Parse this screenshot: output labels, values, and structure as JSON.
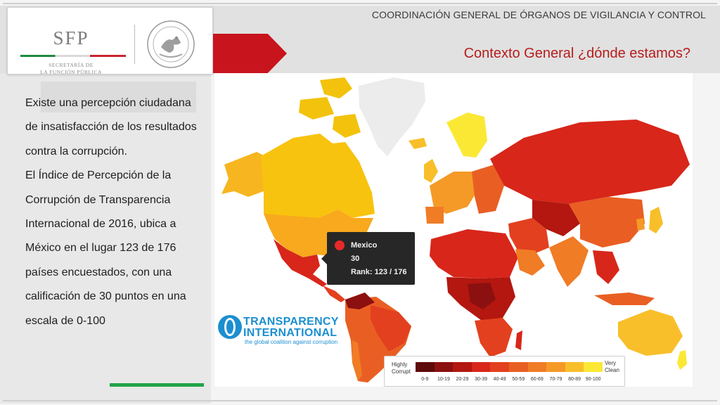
{
  "header": {
    "org_title": "COORDINACIÓN GENERAL DE ÓRGANOS DE VIGILANCIA Y CONTROL",
    "slide_title": "Contexto General ¿dónde estamos?"
  },
  "logo": {
    "acronym": "SFP",
    "subtitle_line1": "SECRETARÍA DE",
    "subtitle_line2": "LA FUNCIÓN PÚBLICA"
  },
  "body": {
    "paragraph1": "Existe una percepción ciudadana de insatisfacción de los resultados contra la corrupción.",
    "paragraph2": "El Índice de Percepción de la Corrupción de Transparencia Internacional de 2016, ubica a México en el lugar 123 de 176 países encuestados, con una calificación de 30 puntos en una escala de 0-100"
  },
  "tooltip": {
    "country": "Mexico",
    "score": "30",
    "rank": "Rank: 123 / 176"
  },
  "ti_logo": {
    "name_line1": "TRANSPARENCY",
    "name_line2": "INTERNATIONAL",
    "tagline": "the global coalition against corruption"
  },
  "legend": {
    "left_line1": "Highly",
    "left_line2": "Corrupt",
    "right_line1": "Very",
    "right_line2": "Clean",
    "ranges": [
      "0-9",
      "10-19",
      "20-29",
      "30-39",
      "40-49",
      "50-59",
      "60-69",
      "70-79",
      "80-89",
      "90-100"
    ],
    "colors": [
      "#5e0a0a",
      "#8c1010",
      "#b3170f",
      "#d8261a",
      "#e3401f",
      "#e95f23",
      "#f07c25",
      "#f59a27",
      "#f8bf2a",
      "#fbe835"
    ]
  },
  "colors": {
    "brand_red": "#c8141d",
    "title_red": "#b71c1c",
    "accent_green": "#22a447",
    "ti_blue": "#1b8fd0"
  }
}
